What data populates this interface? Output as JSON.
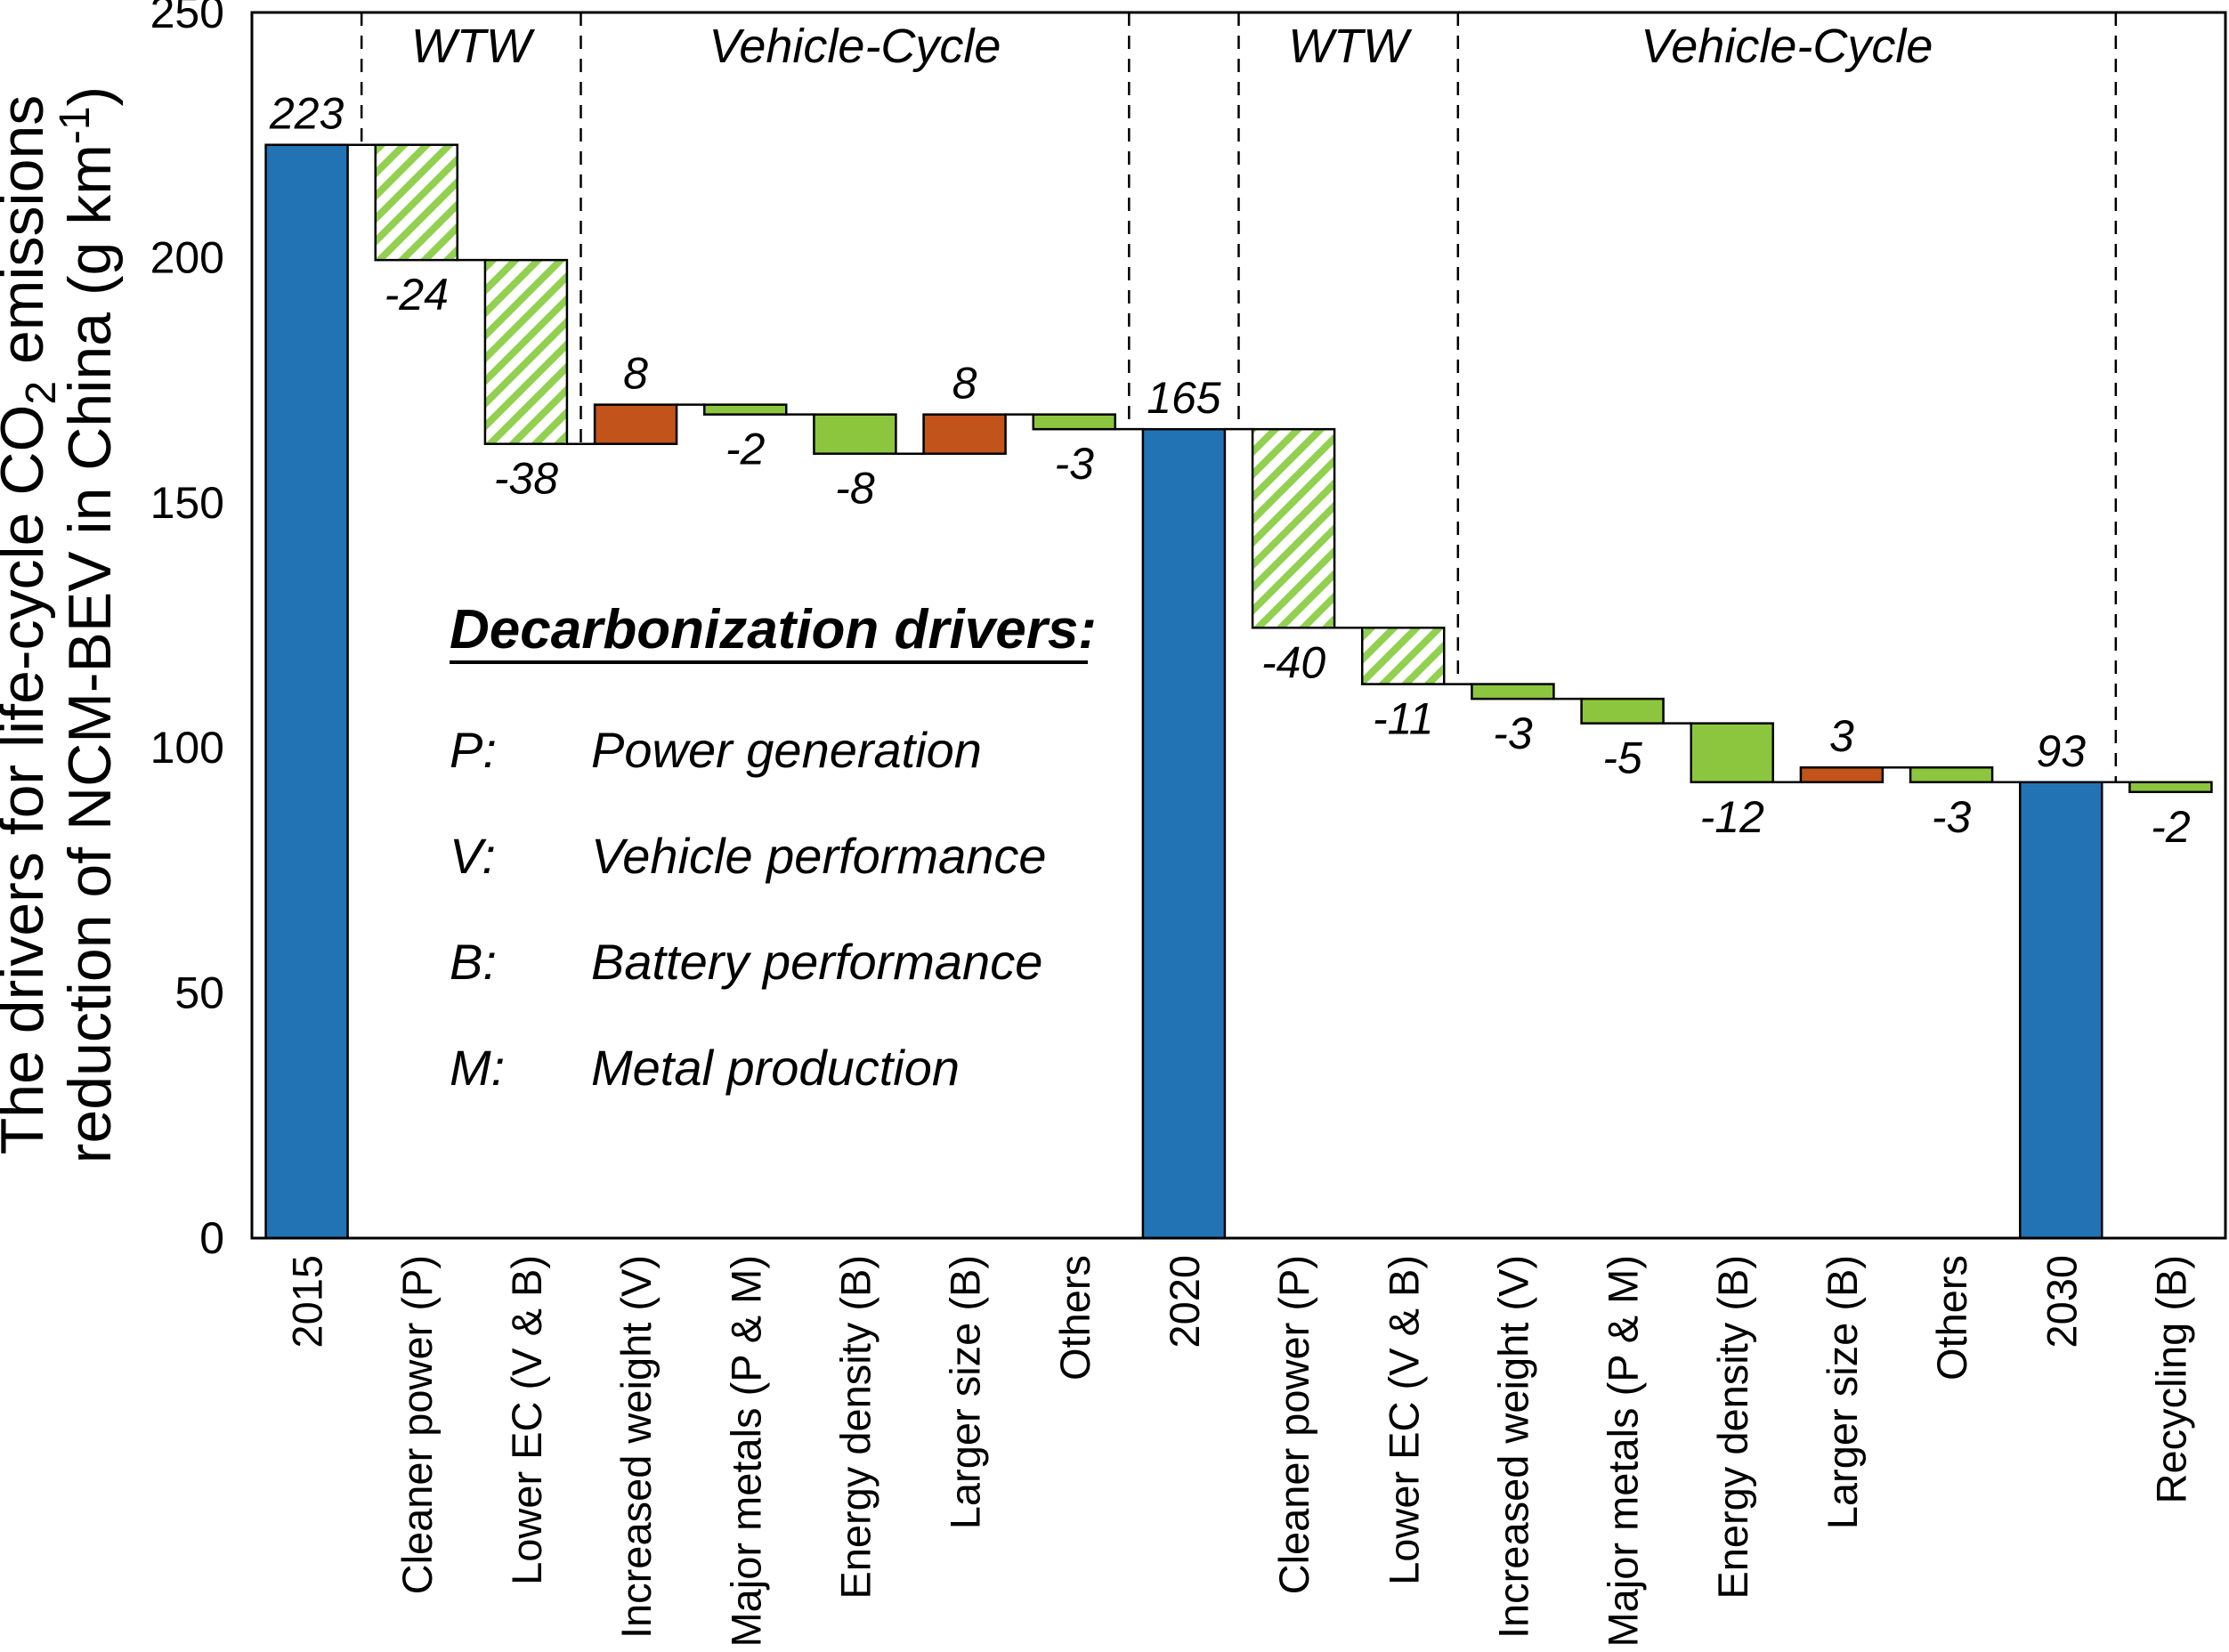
{
  "colors": {
    "background": "#ffffff",
    "total_bar": "#2273B4",
    "increase_bar": "#C1531B",
    "decrease_bar": "#8CC63E",
    "hatch_stripe": "#92D050",
    "line": "#000000"
  },
  "y_axis": {
    "ticks": [
      "0",
      "50",
      "100",
      "150",
      "200",
      "250"
    ],
    "range": [
      0,
      250
    ],
    "title_lines": [
      {
        "parts": [
          {
            "text": "The drivers for life-cycle CO"
          },
          {
            "text": "2",
            "script": "sub"
          },
          {
            "text": " emissions"
          }
        ]
      },
      {
        "parts": [
          {
            "text": "reduction of NCM-BEV in China (g km"
          },
          {
            "text": "-1",
            "script": "sup"
          },
          {
            "text": ")"
          }
        ]
      }
    ]
  },
  "chart_data": {
    "type": "bar",
    "subtype": "waterfall",
    "title": "",
    "xlabel": "",
    "ylabel": "The drivers for life-cycle CO2 emissions reduction of NCM-BEV in China (g km-1)",
    "ylim": [
      0,
      250
    ],
    "grid": false,
    "categories": [
      "2015",
      "Cleaner power (P)",
      "Lower EC (V & B)",
      "Increased weight (V)",
      "Major metals (P & M)",
      "Energy density (B)",
      "Larger size (B)",
      "Others",
      "2020",
      "Cleaner power (P)",
      "Lower EC (V & B)",
      "Increased weight (V)",
      "Major metals (P & M)",
      "Energy density (B)",
      "Larger size (B)",
      "Others",
      "2030",
      "Recycling (B)"
    ],
    "values": [
      223,
      -24,
      -38,
      8,
      -2,
      -8,
      8,
      -3,
      165,
      -40,
      -11,
      -3,
      -5,
      -12,
      3,
      -3,
      93,
      -2
    ],
    "bars": [
      {
        "category": "2015",
        "value_label": "223",
        "kind": "total",
        "style": "blue",
        "draw_start": 0,
        "draw_end": 223,
        "label_pos": "above"
      },
      {
        "category": "Cleaner power (P)",
        "value_label": "-24",
        "kind": "decrease",
        "style": "hatched",
        "draw_start": 223,
        "draw_end": 199.5,
        "label_pos": "below"
      },
      {
        "category": "Lower EC (V & B)",
        "value_label": "-38",
        "kind": "decrease",
        "style": "hatched",
        "draw_start": 199.5,
        "draw_end": 162,
        "label_pos": "below"
      },
      {
        "category": "Increased weight (V)",
        "value_label": "8",
        "kind": "increase",
        "style": "orange",
        "draw_start": 162,
        "draw_end": 170,
        "label_pos": "above"
      },
      {
        "category": "Major metals (P & M)",
        "value_label": "-2",
        "kind": "decrease",
        "style": "green",
        "draw_start": 170,
        "draw_end": 168,
        "label_pos": "below"
      },
      {
        "category": "Energy density (B)",
        "value_label": "-8",
        "kind": "decrease",
        "style": "green",
        "draw_start": 168,
        "draw_end": 160,
        "label_pos": "below"
      },
      {
        "category": "Larger size (B)",
        "value_label": "8",
        "kind": "increase",
        "style": "orange",
        "draw_start": 160,
        "draw_end": 168,
        "label_pos": "above"
      },
      {
        "category": "Others",
        "value_label": "-3",
        "kind": "decrease",
        "style": "green",
        "draw_start": 168,
        "draw_end": 165,
        "label_pos": "below"
      },
      {
        "category": "2020",
        "value_label": "165",
        "kind": "total",
        "style": "blue",
        "draw_start": 0,
        "draw_end": 165,
        "label_pos": "above"
      },
      {
        "category": "Cleaner power (P)",
        "value_label": "-40",
        "kind": "decrease",
        "style": "hatched",
        "draw_start": 165,
        "draw_end": 124.5,
        "label_pos": "below"
      },
      {
        "category": "Lower EC (V & B)",
        "value_label": "-11",
        "kind": "decrease",
        "style": "hatched",
        "draw_start": 124.5,
        "draw_end": 113,
        "label_pos": "below"
      },
      {
        "category": "Increased weight (V)",
        "value_label": "-3",
        "kind": "decrease",
        "style": "green",
        "draw_start": 113,
        "draw_end": 110,
        "label_pos": "below"
      },
      {
        "category": "Major metals (P & M)",
        "value_label": "-5",
        "kind": "decrease",
        "style": "green",
        "draw_start": 110,
        "draw_end": 105,
        "label_pos": "below"
      },
      {
        "category": "Energy density (B)",
        "value_label": "-12",
        "kind": "decrease",
        "style": "green",
        "draw_start": 105,
        "draw_end": 93,
        "label_pos": "below"
      },
      {
        "category": "Larger size (B)",
        "value_label": "3",
        "kind": "increase",
        "style": "orange",
        "draw_start": 93,
        "draw_end": 96,
        "label_pos": "above"
      },
      {
        "category": "Others",
        "value_label": "-3",
        "kind": "decrease",
        "style": "green",
        "draw_start": 96,
        "draw_end": 93,
        "label_pos": "below"
      },
      {
        "category": "2030",
        "value_label": "93",
        "kind": "total",
        "style": "blue",
        "draw_start": 0,
        "draw_end": 93,
        "label_pos": "above"
      },
      {
        "category": "Recycling (B)",
        "value_label": "-2",
        "kind": "decrease",
        "style": "green",
        "draw_start": 93,
        "draw_end": 91,
        "label_pos": "below"
      }
    ],
    "sections": [
      {
        "name": "WTW",
        "from_boundary": 1,
        "to_boundary": 3
      },
      {
        "name": "Vehicle-Cycle",
        "from_boundary": 3,
        "to_boundary": 8
      },
      {
        "name": "WTW",
        "from_boundary": 9,
        "to_boundary": 11
      },
      {
        "name": "Vehicle-Cycle",
        "from_boundary": 11,
        "to_boundary": 17
      }
    ],
    "separators": [
      {
        "boundary": 1,
        "to_value": 223
      },
      {
        "boundary": 3,
        "to_value": 162
      },
      {
        "boundary": 8,
        "to_value": 165
      },
      {
        "boundary": 9,
        "to_value": 165
      },
      {
        "boundary": 11,
        "to_value": 113
      },
      {
        "boundary": 17,
        "to_value": 93
      }
    ],
    "legend": {
      "title": "Decarbonization drivers:",
      "items": [
        {
          "key": "P:",
          "desc": "Power generation"
        },
        {
          "key": "V:",
          "desc": "Vehicle performance"
        },
        {
          "key": "B:",
          "desc": "Battery performance"
        },
        {
          "key": "M:",
          "desc": "Metal production"
        }
      ]
    }
  }
}
